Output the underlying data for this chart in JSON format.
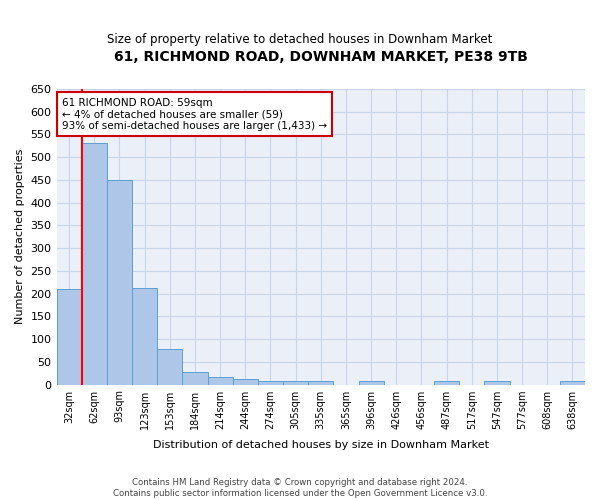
{
  "title": "61, RICHMOND ROAD, DOWNHAM MARKET, PE38 9TB",
  "subtitle": "Size of property relative to detached houses in Downham Market",
  "xlabel": "Distribution of detached houses by size in Downham Market",
  "ylabel": "Number of detached properties",
  "footnote1": "Contains HM Land Registry data © Crown copyright and database right 2024.",
  "footnote2": "Contains public sector information licensed under the Open Government Licence v3.0.",
  "categories": [
    "32sqm",
    "62sqm",
    "93sqm",
    "123sqm",
    "153sqm",
    "184sqm",
    "214sqm",
    "244sqm",
    "274sqm",
    "305sqm",
    "335sqm",
    "365sqm",
    "396sqm",
    "426sqm",
    "456sqm",
    "487sqm",
    "517sqm",
    "547sqm",
    "577sqm",
    "608sqm",
    "638sqm"
  ],
  "values": [
    210,
    530,
    450,
    212,
    78,
    27,
    16,
    12,
    8,
    8,
    8,
    0,
    7,
    0,
    0,
    7,
    0,
    7,
    0,
    0,
    7
  ],
  "bar_color": "#aec6e8",
  "bar_edgecolor": "#5a9fd4",
  "annotation_line1": "61 RICHMOND ROAD: 59sqm",
  "annotation_line2": "← 4% of detached houses are smaller (59)",
  "annotation_line3": "93% of semi-detached houses are larger (1,433) →",
  "annotation_box_color": "#cc0000",
  "annotation_fill_color": "#ffffff",
  "ylim": [
    0,
    650
  ],
  "yticks": [
    0,
    50,
    100,
    150,
    200,
    250,
    300,
    350,
    400,
    450,
    500,
    550,
    600,
    650
  ],
  "grid_color": "#c8d4e8",
  "bg_color": "#eaeff8",
  "red_line_x": 0.5
}
